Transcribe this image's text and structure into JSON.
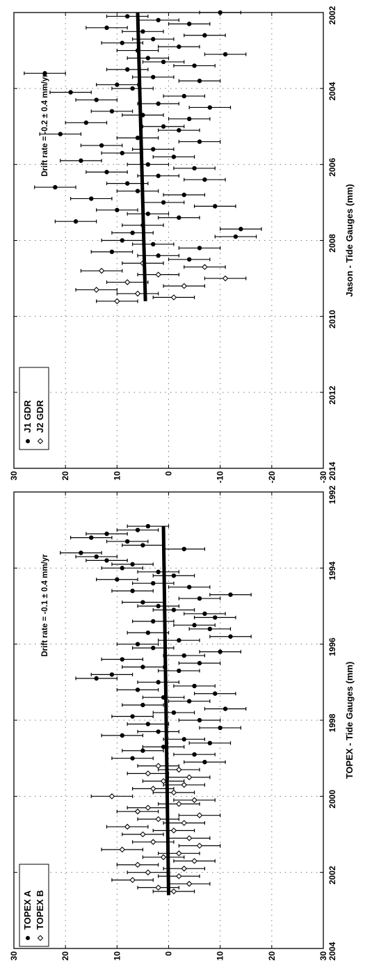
{
  "chart_data": [
    {
      "type": "scatter",
      "ylabel": "TOPEX - Tide Gauges (mm)",
      "xlim": [
        1992,
        2004
      ],
      "ylim": [
        -30,
        30
      ],
      "x_ticks": [
        "1992",
        "1994",
        "1996",
        "1998",
        "2000",
        "2002",
        "2004"
      ],
      "y_ticks": [
        "-30",
        "-20",
        "-10",
        "0",
        "10",
        "20",
        "30"
      ],
      "grid": true,
      "legend_position": "bottom-left",
      "annotation": "Drift rate = -0.1  ± 0.4 mm/yr",
      "trend": {
        "x": [
          1992.9,
          2002.6
        ],
        "y": [
          1.0,
          0.0
        ]
      },
      "series": [
        {
          "name": "TOPEX A",
          "marker": "filled-circle",
          "x": [
            1992.9,
            1993.0,
            1993.1,
            1993.2,
            1993.3,
            1993.4,
            1993.5,
            1993.6,
            1993.7,
            1993.8,
            1993.9,
            1994.0,
            1994.1,
            1994.2,
            1994.3,
            1994.4,
            1994.5,
            1994.6,
            1994.7,
            1994.8,
            1994.9,
            1995.0,
            1995.1,
            1995.2,
            1995.3,
            1995.4,
            1995.5,
            1995.6,
            1995.7,
            1995.8,
            1995.9,
            1996.0,
            1996.1,
            1996.2,
            1996.3,
            1996.4,
            1996.5,
            1996.6,
            1996.7,
            1996.8,
            1996.9,
            1997.0,
            1997.1,
            1997.2,
            1997.3,
            1997.4,
            1997.5,
            1997.6,
            1997.7,
            1997.8,
            1997.9,
            1998.0,
            1998.1,
            1998.2,
            1998.3,
            1998.4,
            1998.5,
            1998.6,
            1998.7,
            1998.8,
            1998.9,
            1999.0,
            1999.1
          ],
          "y": [
            4,
            6,
            12,
            15,
            8,
            5,
            -3,
            17,
            14,
            12,
            7,
            9,
            2,
            -1,
            10,
            3,
            -4,
            7,
            -12,
            -6,
            5,
            2,
            -1,
            -7,
            -9,
            3,
            -5,
            -8,
            4,
            -12,
            -2,
            6,
            3,
            -10,
            -3,
            9,
            -6,
            5,
            -2,
            11,
            14,
            2,
            -5,
            6,
            -9,
            1,
            -4,
            5,
            -11,
            -1,
            7,
            -6,
            4,
            -10,
            2,
            9,
            -3,
            -8,
            1,
            5,
            -5,
            7,
            -7
          ]
        },
        {
          "name": "TOPEX B",
          "marker": "open-diamond",
          "x": [
            1999.2,
            1999.3,
            1999.4,
            1999.5,
            1999.6,
            1999.7,
            1999.8,
            1999.9,
            2000.0,
            2000.1,
            2000.2,
            2000.3,
            2000.4,
            2000.5,
            2000.6,
            2000.7,
            2000.8,
            2000.9,
            2001.0,
            2001.1,
            2001.2,
            2001.3,
            2001.4,
            2001.5,
            2001.6,
            2001.7,
            2001.8,
            2001.9,
            2002.0,
            2002.1,
            2002.2,
            2002.3,
            2002.4,
            2002.5
          ],
          "y": [
            2,
            -2,
            4,
            -4,
            1,
            -3,
            3,
            -1,
            11,
            -5,
            -2,
            4,
            6,
            -6,
            2,
            -3,
            8,
            -1,
            5,
            -4,
            3,
            -6,
            9,
            -2,
            1,
            -5,
            6,
            -3,
            4,
            -2,
            7,
            -4,
            2,
            -1
          ]
        }
      ]
    },
    {
      "type": "scatter",
      "ylabel": "Jason - Tide Gauges (mm)",
      "xlim": [
        2002,
        2014
      ],
      "ylim": [
        -30,
        30
      ],
      "x_ticks": [
        "2002",
        "2004",
        "2006",
        "2008",
        "2010",
        "2012",
        "2014"
      ],
      "y_ticks": [
        "-30",
        "-20",
        "-10",
        "0",
        "10",
        "20",
        "30"
      ],
      "grid": true,
      "legend_position": "bottom-left",
      "annotation": "Drift rate = -0.2  ± 0.4 mm/yr",
      "trend": {
        "x": [
          2002.0,
          2009.6
        ],
        "y": [
          6.0,
          4.5
        ]
      },
      "series": [
        {
          "name": "J1 GDR",
          "marker": "filled-circle",
          "x": [
            2002.0,
            2002.1,
            2002.2,
            2002.3,
            2002.4,
            2002.5,
            2002.6,
            2002.7,
            2002.8,
            2002.9,
            2003.0,
            2003.1,
            2003.2,
            2003.3,
            2003.4,
            2003.5,
            2003.6,
            2003.7,
            2003.8,
            2003.9,
            2004.0,
            2004.1,
            2004.2,
            2004.3,
            2004.4,
            2004.5,
            2004.6,
            2004.7,
            2004.8,
            2004.9,
            2005.0,
            2005.1,
            2005.2,
            2005.3,
            2005.4,
            2005.5,
            2005.6,
            2005.7,
            2005.8,
            2005.9,
            2006.0,
            2006.1,
            2006.2,
            2006.3,
            2006.4,
            2006.5,
            2006.6,
            2006.7,
            2006.8,
            2006.9,
            2007.0,
            2007.1,
            2007.2,
            2007.3,
            2007.4,
            2007.5,
            2007.6,
            2007.7,
            2007.8,
            2007.9,
            2008.0,
            2008.1,
            2008.2,
            2008.3,
            2008.4,
            2008.5
          ],
          "y": [
            -10,
            8,
            2,
            -4,
            12,
            5,
            -7,
            3,
            9,
            -2,
            6,
            -11,
            4,
            1,
            -5,
            8,
            24,
            3,
            -6,
            10,
            7,
            19,
            -3,
            14,
            2,
            -8,
            11,
            5,
            -4,
            16,
            1,
            -2,
            21,
            6,
            -6,
            13,
            3,
            9,
            -1,
            17,
            4,
            -5,
            12,
            2,
            -7,
            8,
            22,
            6,
            -3,
            15,
            1,
            -9,
            10,
            4,
            -2,
            18,
            5,
            -14,
            7,
            -13,
            9,
            3,
            -6,
            11,
            2,
            -4
          ]
        },
        {
          "name": "J2 GDR",
          "marker": "open-diamond",
          "x": [
            2008.6,
            2008.7,
            2008.8,
            2008.9,
            2009.0,
            2009.1,
            2009.2,
            2009.3,
            2009.4,
            2009.5,
            2009.6
          ],
          "y": [
            5,
            -7,
            13,
            2,
            -11,
            8,
            -3,
            14,
            6,
            -1,
            10
          ]
        }
      ]
    }
  ]
}
